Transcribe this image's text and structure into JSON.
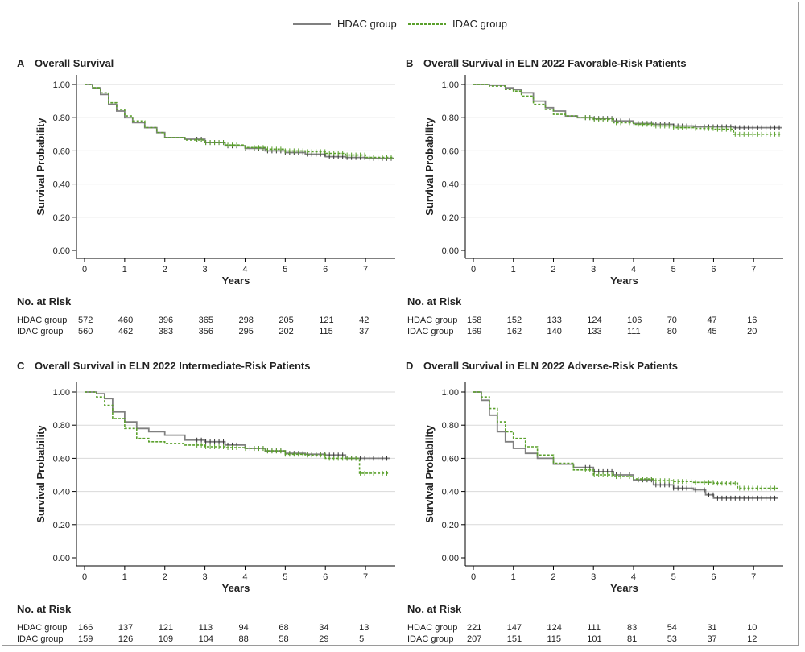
{
  "legend": {
    "items": [
      {
        "label": "HDAC group",
        "color": "#808080",
        "style": "solid"
      },
      {
        "label": "IDAC group",
        "color": "#5aa02c",
        "style": "dotted"
      }
    ]
  },
  "colors": {
    "hdac": "#808080",
    "idac": "#5aa02c",
    "axis": "#000000",
    "grid": "#d9d9d9"
  },
  "risk_table": {
    "title": "No. at Risk",
    "row_labels": [
      "HDAC group",
      "IDAC group"
    ]
  },
  "chart_data": [
    {
      "type": "line",
      "panel": "A",
      "title": "Overall Survival",
      "xlabel": "Years",
      "ylabel": "Survival Probability",
      "xlim": [
        0,
        7.7
      ],
      "ylim": [
        0,
        1
      ],
      "x_ticks": [
        "0",
        "1",
        "2",
        "3",
        "4",
        "5",
        "6",
        "7"
      ],
      "y_ticks": [
        "0.00",
        "0.20",
        "0.40",
        "0.60",
        "0.80",
        "1.00"
      ],
      "grid": true,
      "series": [
        {
          "name": "HDAC group",
          "x": [
            0,
            0.2,
            0.4,
            0.6,
            0.8,
            1.0,
            1.2,
            1.5,
            1.8,
            2.0,
            2.5,
            3.0,
            3.5,
            4.0,
            4.5,
            5.0,
            5.5,
            6.0,
            6.5,
            7.0,
            7.7
          ],
          "y": [
            1.0,
            0.98,
            0.94,
            0.88,
            0.84,
            0.8,
            0.77,
            0.74,
            0.71,
            0.68,
            0.67,
            0.65,
            0.63,
            0.615,
            0.6,
            0.59,
            0.58,
            0.565,
            0.56,
            0.555,
            0.555
          ]
        },
        {
          "name": "IDAC group",
          "x": [
            0,
            0.2,
            0.4,
            0.6,
            0.8,
            1.0,
            1.2,
            1.5,
            1.8,
            2.0,
            2.5,
            3.0,
            3.5,
            4.0,
            4.5,
            5.0,
            5.5,
            6.0,
            6.5,
            7.0,
            7.7
          ],
          "y": [
            1.0,
            0.98,
            0.95,
            0.89,
            0.85,
            0.81,
            0.78,
            0.74,
            0.71,
            0.68,
            0.665,
            0.65,
            0.635,
            0.62,
            0.61,
            0.6,
            0.595,
            0.585,
            0.575,
            0.56,
            0.55
          ]
        }
      ],
      "at_risk": {
        "HDAC group": [
          "572",
          "460",
          "396",
          "365",
          "298",
          "205",
          "121",
          "42"
        ],
        "IDAC group": [
          "560",
          "462",
          "383",
          "356",
          "295",
          "202",
          "115",
          "37"
        ]
      }
    },
    {
      "type": "line",
      "panel": "B",
      "title": "Overall Survival in ELN 2022 Favorable-Risk Patients",
      "xlabel": "Years",
      "ylabel": "Survival Probability",
      "xlim": [
        0,
        7.7
      ],
      "ylim": [
        0,
        1
      ],
      "x_ticks": [
        "0",
        "1",
        "2",
        "3",
        "4",
        "5",
        "6",
        "7"
      ],
      "y_ticks": [
        "0.00",
        "0.20",
        "0.40",
        "0.60",
        "0.80",
        "1.00"
      ],
      "grid": true,
      "series": [
        {
          "name": "HDAC group",
          "x": [
            0,
            0.4,
            0.8,
            1.0,
            1.2,
            1.5,
            1.8,
            2.0,
            2.3,
            2.6,
            3.0,
            3.5,
            4.0,
            4.5,
            5.0,
            5.5,
            6.0,
            6.5,
            7.0,
            7.7
          ],
          "y": [
            1.0,
            0.995,
            0.98,
            0.97,
            0.95,
            0.9,
            0.86,
            0.84,
            0.81,
            0.8,
            0.795,
            0.78,
            0.765,
            0.76,
            0.75,
            0.745,
            0.745,
            0.74,
            0.74,
            0.74
          ]
        },
        {
          "name": "IDAC group",
          "x": [
            0,
            0.4,
            0.8,
            1.0,
            1.2,
            1.5,
            1.8,
            2.0,
            2.3,
            2.6,
            3.0,
            3.5,
            4.0,
            4.5,
            5.0,
            5.5,
            6.0,
            6.5,
            7.0,
            7.7
          ],
          "y": [
            1.0,
            0.99,
            0.97,
            0.96,
            0.93,
            0.88,
            0.85,
            0.82,
            0.81,
            0.8,
            0.79,
            0.77,
            0.76,
            0.75,
            0.74,
            0.735,
            0.73,
            0.7,
            0.7,
            0.7
          ]
        }
      ],
      "at_risk": {
        "HDAC group": [
          "158",
          "152",
          "133",
          "124",
          "106",
          "70",
          "47",
          "16"
        ],
        "IDAC group": [
          "169",
          "162",
          "140",
          "133",
          "111",
          "80",
          "45",
          "20"
        ]
      }
    },
    {
      "type": "line",
      "panel": "C",
      "title": "Overall Survival in ELN 2022 Intermediate-Risk Patients",
      "xlabel": "Years",
      "ylabel": "Survival Probability",
      "xlim": [
        0,
        7.7
      ],
      "ylim": [
        0,
        1
      ],
      "x_ticks": [
        "0",
        "1",
        "2",
        "3",
        "4",
        "5",
        "6",
        "7"
      ],
      "y_ticks": [
        "0.00",
        "0.20",
        "0.40",
        "0.60",
        "0.80",
        "1.00"
      ],
      "grid": true,
      "series": [
        {
          "name": "HDAC group",
          "x": [
            0,
            0.3,
            0.5,
            0.7,
            1.0,
            1.3,
            1.6,
            2.0,
            2.5,
            3.0,
            3.5,
            4.0,
            4.5,
            5.0,
            5.5,
            6.0,
            6.5,
            7.0,
            7.6
          ],
          "y": [
            1.0,
            0.99,
            0.96,
            0.88,
            0.82,
            0.78,
            0.76,
            0.74,
            0.71,
            0.7,
            0.68,
            0.66,
            0.645,
            0.63,
            0.625,
            0.62,
            0.6,
            0.6,
            0.6
          ]
        },
        {
          "name": "IDAC group",
          "x": [
            0,
            0.3,
            0.5,
            0.7,
            1.0,
            1.3,
            1.6,
            2.0,
            2.5,
            3.0,
            3.5,
            4.0,
            4.5,
            5.0,
            5.5,
            6.0,
            6.5,
            6.8,
            6.85,
            7.6
          ],
          "y": [
            1.0,
            0.97,
            0.92,
            0.84,
            0.78,
            0.72,
            0.7,
            0.69,
            0.68,
            0.67,
            0.665,
            0.66,
            0.645,
            0.625,
            0.62,
            0.6,
            0.6,
            0.6,
            0.51,
            0.51
          ]
        }
      ],
      "at_risk": {
        "HDAC group": [
          "166",
          "137",
          "121",
          "113",
          "94",
          "68",
          "34",
          "13"
        ],
        "IDAC group": [
          "159",
          "126",
          "109",
          "104",
          "88",
          "58",
          "29",
          "5"
        ]
      }
    },
    {
      "type": "line",
      "panel": "D",
      "title": "Overall Survival in ELN 2022 Adverse-Risk Patients",
      "xlabel": "Years",
      "ylabel": "Survival Probability",
      "xlim": [
        0,
        7.7
      ],
      "ylim": [
        0,
        1
      ],
      "x_ticks": [
        "0",
        "1",
        "2",
        "3",
        "4",
        "5",
        "6",
        "7"
      ],
      "y_ticks": [
        "0.00",
        "0.20",
        "0.40",
        "0.60",
        "0.80",
        "1.00"
      ],
      "grid": true,
      "series": [
        {
          "name": "HDAC group",
          "x": [
            0,
            0.2,
            0.4,
            0.6,
            0.8,
            1.0,
            1.3,
            1.6,
            2.0,
            2.5,
            3.0,
            3.5,
            4.0,
            4.5,
            5.0,
            5.5,
            5.8,
            6.0,
            6.5,
            7.0,
            7.6
          ],
          "y": [
            1.0,
            0.95,
            0.86,
            0.76,
            0.7,
            0.66,
            0.63,
            0.6,
            0.565,
            0.545,
            0.52,
            0.5,
            0.47,
            0.44,
            0.42,
            0.41,
            0.38,
            0.36,
            0.36,
            0.36,
            0.36
          ]
        },
        {
          "name": "IDAC group",
          "x": [
            0,
            0.2,
            0.4,
            0.6,
            0.8,
            1.0,
            1.3,
            1.6,
            2.0,
            2.5,
            3.0,
            3.5,
            4.0,
            4.5,
            5.0,
            5.5,
            6.0,
            6.5,
            6.6,
            7.0,
            7.6
          ],
          "y": [
            1.0,
            0.97,
            0.9,
            0.82,
            0.76,
            0.72,
            0.67,
            0.62,
            0.57,
            0.53,
            0.5,
            0.49,
            0.475,
            0.465,
            0.46,
            0.455,
            0.45,
            0.45,
            0.42,
            0.42,
            0.42
          ]
        }
      ],
      "at_risk": {
        "HDAC group": [
          "221",
          "147",
          "124",
          "111",
          "83",
          "54",
          "31",
          "10"
        ],
        "IDAC group": [
          "207",
          "151",
          "115",
          "101",
          "81",
          "53",
          "37",
          "12"
        ]
      }
    }
  ]
}
